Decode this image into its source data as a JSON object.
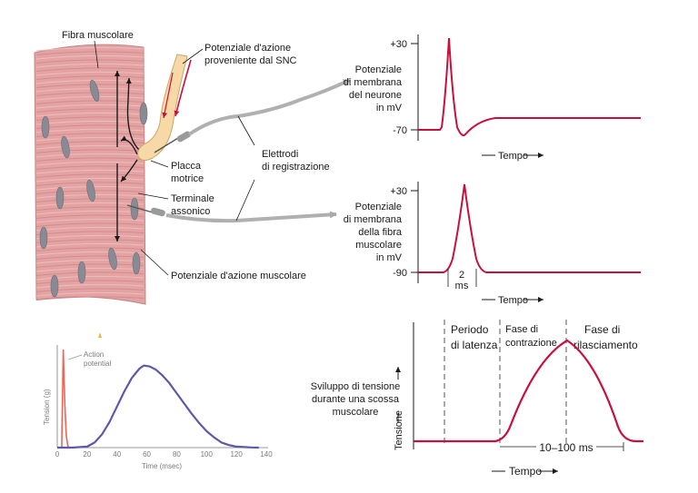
{
  "colors": {
    "trace": "#c8103c",
    "muscle": "#e4a3a3",
    "nucleus": "#8a8a94",
    "electrode": "#a8a8a8",
    "nerve": "#f6d9a6",
    "action_potential_small": "#e8665a",
    "tension_curve": "#5a5aa8"
  },
  "diagram": {
    "fiber_label": "Fibra muscolare",
    "ap_from_cns": [
      "Potenziale d'azione",
      "proveniente dal SNC"
    ],
    "endplate": [
      "Placca",
      "motrice"
    ],
    "axon_terminal": [
      "Terminale",
      "assonico"
    ],
    "electrodes": [
      "Elettrodi",
      "di registrazione"
    ],
    "muscle_ap": "Potenziale d'azione muscolare"
  },
  "neuron_plot": {
    "ylabel": [
      "Potenziale",
      "di membrana",
      "del neurone",
      "in mV"
    ],
    "ticks": [
      "+30",
      "-70"
    ],
    "xlabel": "Tempo"
  },
  "fiber_plot": {
    "ylabel": [
      "Potenziale",
      "di membrana",
      "della fibra",
      "muscolare",
      "in mV"
    ],
    "ticks": [
      "+30",
      "-90"
    ],
    "duration_top": "2",
    "duration_bottom": "ms",
    "xlabel": "Tempo"
  },
  "twitch_plot": {
    "caption": [
      "Sviluppo di tensione",
      "durante una scossa",
      "muscolare"
    ],
    "ylabel": "Tensione",
    "xlabel": "Tempo",
    "phases": {
      "latency": [
        "Periodo",
        "di latenza"
      ],
      "contraction": [
        "Fase di",
        "contrazione"
      ],
      "relaxation": [
        "Fase di",
        "rilasciamento"
      ]
    },
    "duration": "10–100 ms"
  },
  "chart_data": {
    "type": "line",
    "ylabel": "Tension (g)",
    "xlabel": "Time (msec)",
    "xlim": [
      0,
      140
    ],
    "x_ticks": [
      "0",
      "20",
      "40",
      "60",
      "80",
      "100",
      "120",
      "140"
    ],
    "annotation": [
      "Action",
      "potential"
    ],
    "series": [
      {
        "name": "Action potential",
        "x": [
          0,
          3,
          4,
          5,
          6,
          7,
          8
        ],
        "y": [
          0,
          0,
          0.95,
          0.45,
          0.12,
          0.02,
          0
        ]
      },
      {
        "x": [
          0,
          10,
          20,
          25,
          30,
          35,
          40,
          45,
          50,
          55,
          58,
          62,
          66,
          70,
          75,
          80,
          85,
          90,
          95,
          100,
          105,
          110,
          115,
          120,
          125,
          130,
          135
        ],
        "y": [
          0,
          0,
          0.01,
          0.05,
          0.13,
          0.25,
          0.4,
          0.55,
          0.68,
          0.77,
          0.8,
          0.79,
          0.76,
          0.71,
          0.63,
          0.53,
          0.43,
          0.33,
          0.24,
          0.16,
          0.1,
          0.05,
          0.025,
          0.01,
          0.005,
          0.002,
          0
        ]
      }
    ]
  }
}
